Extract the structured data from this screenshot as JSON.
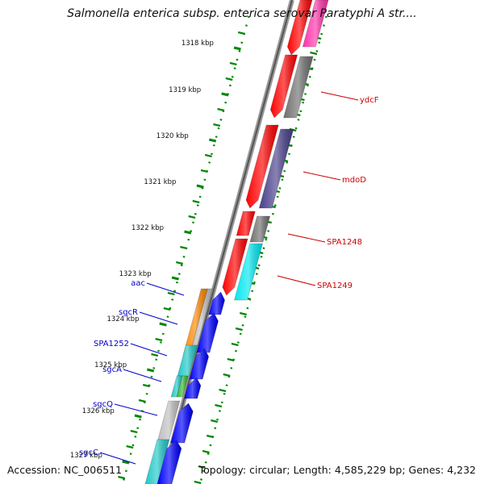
{
  "title": "Salmonella enterica subsp. enterica serovar Paratyphi A str....",
  "footer": {
    "accession": "Accession: NC_006511",
    "summary": "Topology: circular; Length: 4,585,229 bp; Genes: 4,232"
  },
  "colors": {
    "red": "#ff0000",
    "pink": "#ff33aa",
    "gray": "#707070",
    "navy": "#48408a",
    "cyan": "#00e8f0",
    "teal": "#20c8c8",
    "orange": "#ff8800",
    "blue": "#0000ff",
    "green": "#33bb33",
    "silver": "#c0c0c0",
    "tick": "#008800",
    "label_right": "#cc0000",
    "label_left": "#0000cc"
  },
  "scale": {
    "unit": "kbp",
    "ticks": [
      "1318 kbp",
      "1319 kbp",
      "1320 kbp",
      "1321 kbp",
      "1322 kbp",
      "1323 kbp",
      "1324 kbp",
      "1325 kbp",
      "1326 kbp",
      "1327 kbp"
    ]
  },
  "gene_labels": {
    "right": [
      "ydcF",
      "mdoD",
      "SPA1248",
      "SPA1249"
    ],
    "left": [
      "aac",
      "sgcR",
      "SPA1252",
      "sgcA",
      "sgcQ",
      "sgcC"
    ]
  }
}
